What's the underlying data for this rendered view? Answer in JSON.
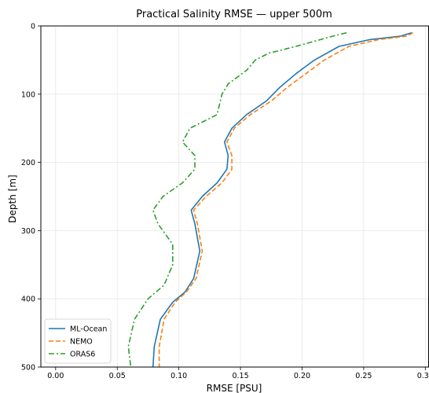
{
  "chart_data": {
    "type": "line",
    "title": "Practical Salinity RMSE — upper 500m",
    "xlabel": "RMSE  [PSU]",
    "ylabel": "Depth  [m]",
    "xlim": [
      -0.012,
      0.303
    ],
    "ylim": [
      500,
      0
    ],
    "y_inverted": true,
    "grid": true,
    "legend_position": "lower-left",
    "xticks": [
      0.0,
      0.05,
      0.1,
      0.15,
      0.2,
      0.25,
      0.3
    ],
    "xtick_labels": [
      "0.00",
      "0.05",
      "0.10",
      "0.15",
      "0.20",
      "0.25",
      "0.30"
    ],
    "yticks": [
      0,
      100,
      200,
      300,
      400,
      500
    ],
    "ytick_labels": [
      "0",
      "100",
      "200",
      "300",
      "400",
      "500"
    ],
    "series": [
      {
        "name": "ML-Ocean",
        "color": "#1f77b4",
        "style": "solid",
        "points": [
          [
            0.289,
            10
          ],
          [
            0.28,
            15
          ],
          [
            0.255,
            20
          ],
          [
            0.23,
            30
          ],
          [
            0.21,
            50
          ],
          [
            0.195,
            70
          ],
          [
            0.182,
            90
          ],
          [
            0.171,
            110
          ],
          [
            0.155,
            130
          ],
          [
            0.143,
            150
          ],
          [
            0.137,
            170
          ],
          [
            0.14,
            190
          ],
          [
            0.139,
            210
          ],
          [
            0.131,
            230
          ],
          [
            0.119,
            250
          ],
          [
            0.11,
            270
          ],
          [
            0.113,
            290
          ],
          [
            0.117,
            330
          ],
          [
            0.112,
            370
          ],
          [
            0.105,
            390
          ],
          [
            0.095,
            405
          ],
          [
            0.085,
            430
          ],
          [
            0.08,
            470
          ],
          [
            0.079,
            500
          ]
        ]
      },
      {
        "name": "NEMO",
        "color": "#ff7f0e",
        "style": "dashed",
        "points": [
          [
            0.29,
            10
          ],
          [
            0.285,
            15
          ],
          [
            0.262,
            20
          ],
          [
            0.238,
            30
          ],
          [
            0.218,
            50
          ],
          [
            0.203,
            70
          ],
          [
            0.188,
            90
          ],
          [
            0.175,
            110
          ],
          [
            0.158,
            130
          ],
          [
            0.145,
            150
          ],
          [
            0.139,
            170
          ],
          [
            0.143,
            190
          ],
          [
            0.143,
            210
          ],
          [
            0.135,
            230
          ],
          [
            0.122,
            250
          ],
          [
            0.112,
            270
          ],
          [
            0.115,
            290
          ],
          [
            0.119,
            330
          ],
          [
            0.114,
            370
          ],
          [
            0.106,
            390
          ],
          [
            0.097,
            405
          ],
          [
            0.088,
            430
          ],
          [
            0.084,
            470
          ],
          [
            0.084,
            500
          ]
        ]
      },
      {
        "name": "ORAS6",
        "color": "#2ca02c",
        "style": "dashdot",
        "points": [
          [
            0.236,
            10
          ],
          [
            0.225,
            15
          ],
          [
            0.195,
            30
          ],
          [
            0.173,
            40
          ],
          [
            0.162,
            50
          ],
          [
            0.155,
            65
          ],
          [
            0.14,
            85
          ],
          [
            0.135,
            100
          ],
          [
            0.131,
            130
          ],
          [
            0.109,
            150
          ],
          [
            0.103,
            170
          ],
          [
            0.113,
            190
          ],
          [
            0.113,
            210
          ],
          [
            0.103,
            230
          ],
          [
            0.087,
            250
          ],
          [
            0.079,
            270
          ],
          [
            0.083,
            290
          ],
          [
            0.095,
            320
          ],
          [
            0.095,
            350
          ],
          [
            0.088,
            380
          ],
          [
            0.075,
            400
          ],
          [
            0.064,
            430
          ],
          [
            0.059,
            470
          ],
          [
            0.061,
            500
          ]
        ]
      }
    ]
  }
}
